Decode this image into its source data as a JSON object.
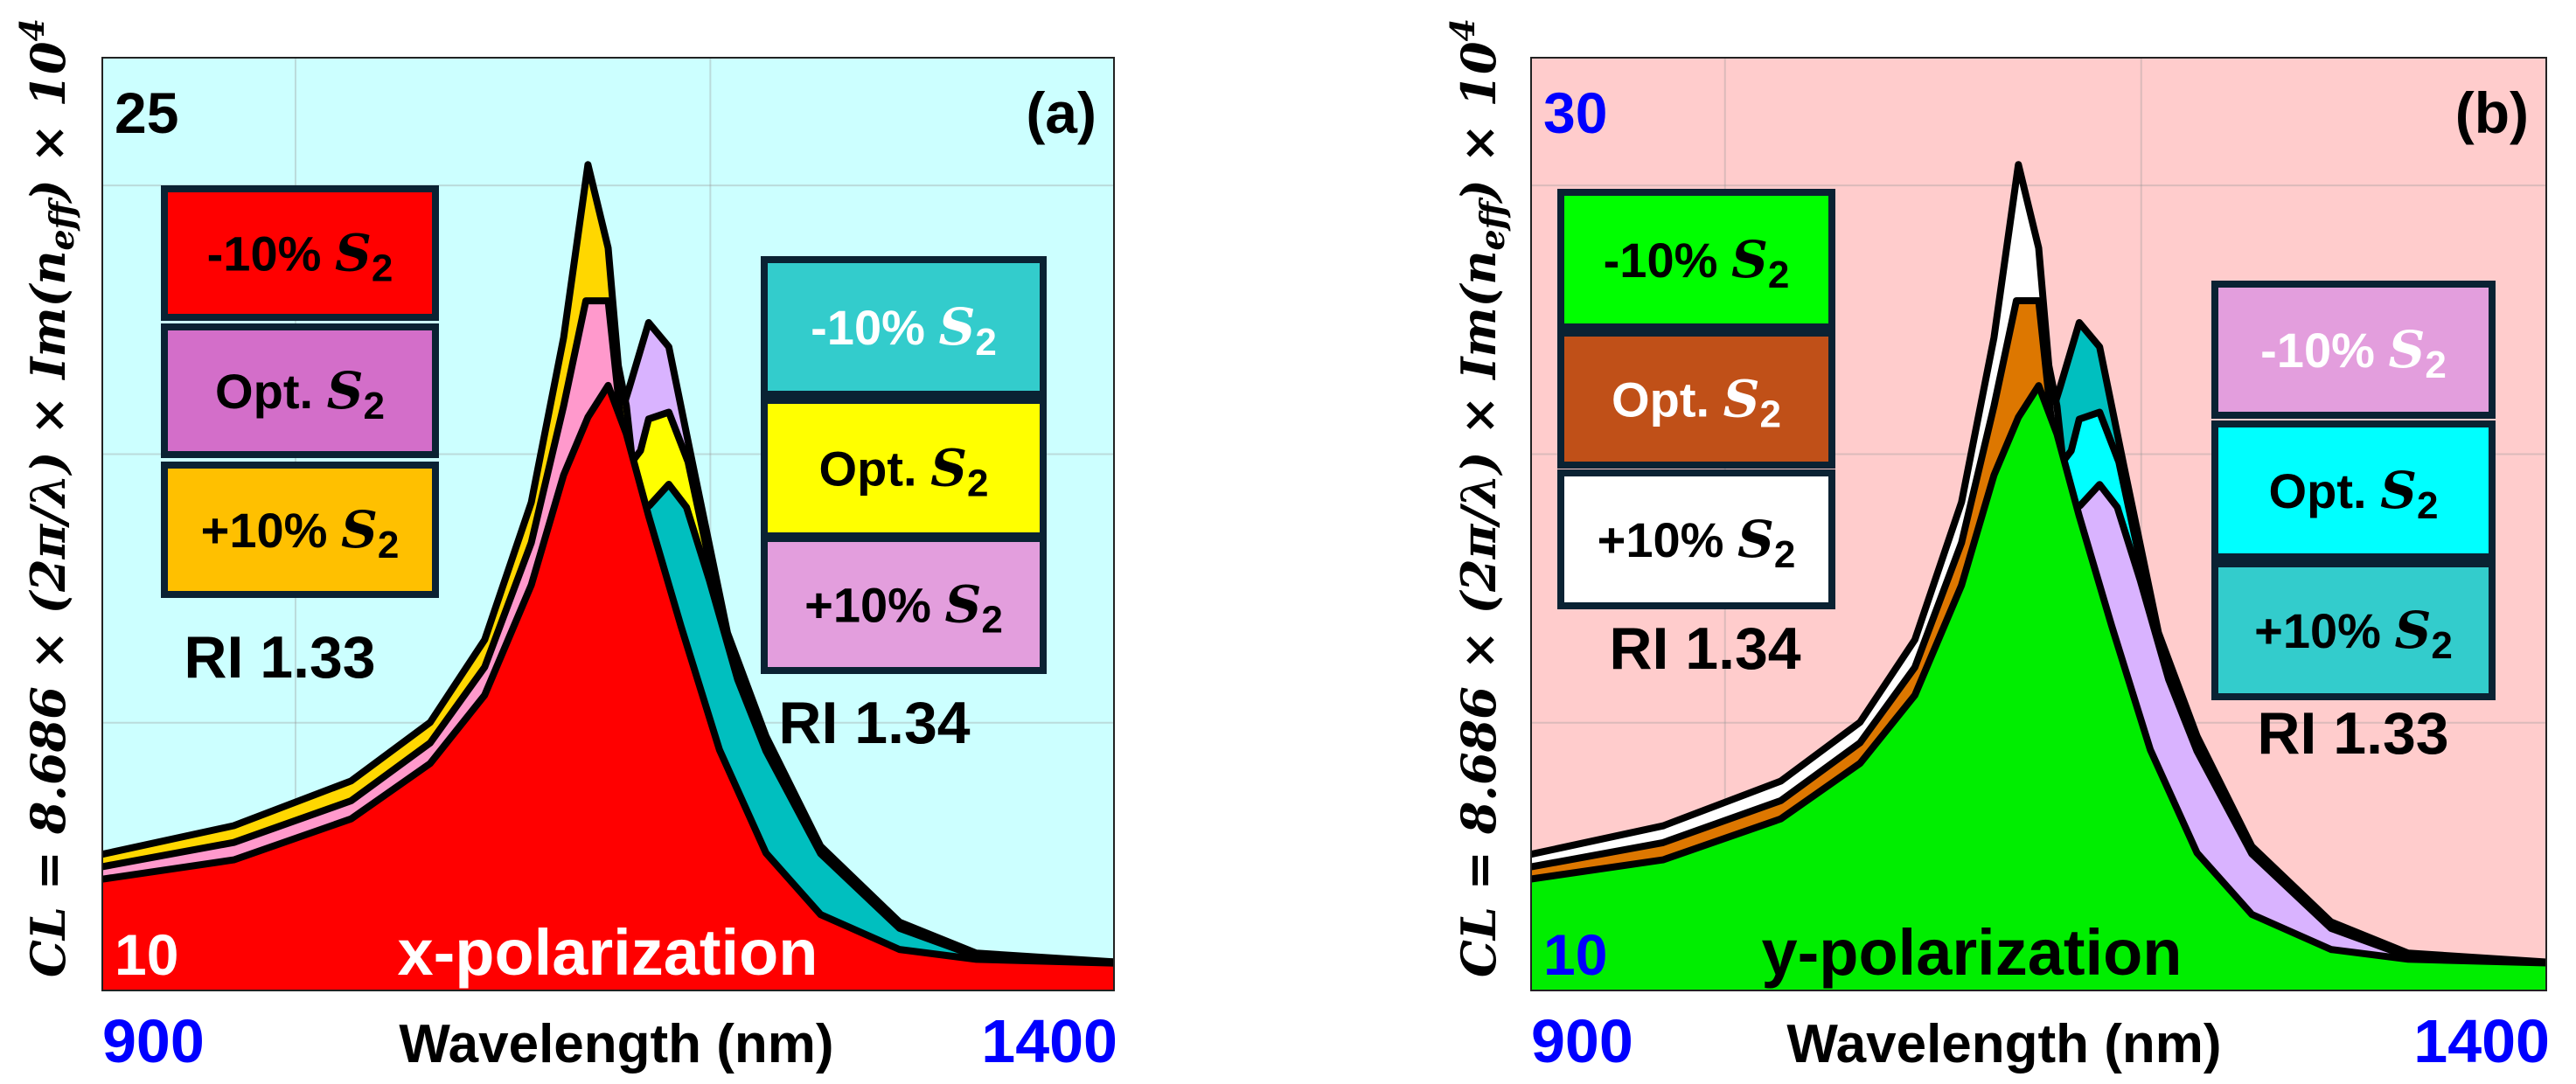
{
  "chart_data": [
    {
      "type": "area",
      "panel_label": "(a)",
      "polarization": "x-polarization",
      "xlabel": "Wavelength (nm)",
      "ylabel": {
        "main": "CL = 8.686 × (2π/λ) × Im(n",
        "sub": "eff",
        "mid": ") × 10",
        "sup": "4"
      },
      "xlim": [
        900,
        1400
      ],
      "ylim": [
        10,
        25
      ],
      "x_ticks": [
        "900",
        "1400"
      ],
      "y_ticks": {
        "top": "25",
        "bottom": "10"
      },
      "grid": true,
      "background": "#ccffff",
      "tick_colors": {
        "x": "#0000ff",
        "y_top": "#000000",
        "y_bottom": "#ffffff"
      },
      "polarization_color": "#ffffff",
      "groups": [
        {
          "ri_label": "RI 1.33",
          "legend": [
            {
              "prefix": "-10% ",
              "sym": "S",
              "sub": "2",
              "color": "#ff0000",
              "text_color": "#000000"
            },
            {
              "prefix": "Opt. ",
              "sym": "S",
              "sub": "2",
              "color": "#d36ec9",
              "text_color": "#000000"
            },
            {
              "prefix": "+10% ",
              "sym": "S",
              "sub": "2",
              "color": "#ffc000",
              "text_color": "#000000"
            }
          ]
        },
        {
          "ri_label": "RI 1.34",
          "legend": [
            {
              "prefix": "-10% ",
              "sym": "S",
              "sub": "2",
              "color": "#33cccc",
              "text_color": "#ffffff"
            },
            {
              "prefix": "Opt. ",
              "sym": "S",
              "sub": "2",
              "color": "#ffff00",
              "text_color": "#000000"
            },
            {
              "prefix": "+10% ",
              "sym": "S",
              "sub": "2",
              "color": "#e39edd",
              "text_color": "#000000"
            }
          ]
        }
      ],
      "series": [
        {
          "name": "RI 1.34 upper",
          "color": "#d9b3ff",
          "x": [
            900,
            1000,
            1050,
            1100,
            1130,
            1150,
            1160.5,
            1170,
            1180,
            1192,
            1209,
            1228,
            1255,
            1294,
            1332,
            1400
          ],
          "y": [
            11.5,
            12.3,
            13.2,
            15.0,
            16.8,
            18.6,
            19.7,
            20.74,
            20.35,
            18.43,
            15.75,
            14.09,
            12.32,
            11.1,
            10.6,
            10.46
          ]
        },
        {
          "name": "RI 1.34 middle",
          "color": "#ffff00",
          "x": [
            900,
            1000,
            1050,
            1100,
            1130,
            1150,
            1166,
            1170,
            1180,
            1189.5,
            1200,
            1212,
            1228,
            1255,
            1294,
            1332,
            1400
          ],
          "y": [
            11.45,
            12.2,
            13.0,
            14.7,
            16.4,
            18.0,
            18.68,
            19.19,
            19.3,
            18.5,
            16.9,
            15.3,
            13.95,
            12.25,
            11.05,
            10.58,
            10.45
          ]
        },
        {
          "name": "RI 1.34 lower",
          "color": "#00bfbf",
          "x": [
            900,
            1000,
            1050,
            1100,
            1130,
            1150,
            1170.5,
            1180,
            1188.7,
            1200,
            1214,
            1228,
            1255,
            1294,
            1332,
            1400
          ],
          "y": [
            11.4,
            12.1,
            12.9,
            14.5,
            16.1,
            17.3,
            17.8,
            18.14,
            17.77,
            16.6,
            15.0,
            13.85,
            12.2,
            11.0,
            10.55,
            10.44
          ]
        },
        {
          "name": "RI 1.33 upper",
          "color": "#ffd700",
          "x": [
            900,
            965,
            1023,
            1062,
            1089,
            1112,
            1128,
            1140,
            1150,
            1155,
            1159,
            1163,
            1170,
            1185,
            1205,
            1228,
            1255,
            1294,
            1332,
            1400
          ],
          "y": [
            12.19,
            12.65,
            13.37,
            14.31,
            15.64,
            17.85,
            20.5,
            23.28,
            21.94,
            20.05,
            19.4,
            18.2,
            17.5,
            15.8,
            13.8,
            12.15,
            11.15,
            10.6,
            10.48,
            10.42
          ]
        },
        {
          "name": "RI 1.33 middle",
          "color": "#ff99cc",
          "x": [
            900,
            965,
            1023,
            1062,
            1089,
            1112,
            1128,
            1139,
            1150,
            1156,
            1160,
            1170,
            1185,
            1205,
            1228,
            1255,
            1294,
            1332,
            1400
          ],
          "y": [
            11.99,
            12.38,
            13.05,
            13.98,
            15.2,
            17.2,
            19.4,
            21.09,
            21.09,
            19.25,
            18.6,
            17.5,
            15.8,
            13.8,
            12.15,
            11.15,
            10.6,
            10.48,
            10.42
          ]
        },
        {
          "name": "RI 1.33 lower",
          "color": "#ff0000",
          "x": [
            900,
            965,
            1023,
            1062,
            1089,
            1112,
            1128,
            1140,
            1150,
            1159,
            1170,
            1186,
            1205,
            1228,
            1255,
            1294,
            1332,
            1400
          ],
          "y": [
            11.79,
            12.1,
            12.76,
            13.65,
            14.75,
            16.52,
            18.29,
            19.22,
            19.73,
            18.95,
            17.63,
            15.86,
            13.87,
            12.21,
            11.22,
            10.66,
            10.5,
            10.44
          ]
        }
      ]
    },
    {
      "type": "area",
      "panel_label": "(b)",
      "polarization": "y-polarization",
      "xlabel": "Wavelength (nm)",
      "ylabel": {
        "main": "CL = 8.686 × (2π/λ) × Im(n",
        "sub": "eff",
        "mid": ") × 10",
        "sup": "4"
      },
      "xlim": [
        900,
        1400
      ],
      "ylim": [
        10,
        30
      ],
      "x_ticks": [
        "900",
        "1400"
      ],
      "y_ticks": {
        "top": "30",
        "bottom": "10"
      },
      "grid": true,
      "background": "#ffcccc",
      "tick_colors": {
        "x": "#0000ff",
        "y_top": "#0000ff",
        "y_bottom": "#0000ff"
      },
      "polarization_color": "#000000",
      "groups": [
        {
          "ri_label": "RI 1.34",
          "legend": [
            {
              "prefix": "-10% ",
              "sym": "S",
              "sub": "2",
              "color": "#00ff00",
              "text_color": "#000000"
            },
            {
              "prefix": "Opt. ",
              "sym": "S",
              "sub": "2",
              "color": "#c05018",
              "text_color": "#ffffff"
            },
            {
              "prefix": "+10% ",
              "sym": "S",
              "sub": "2",
              "color": "#ffffff",
              "text_color": "#000000"
            }
          ]
        },
        {
          "ri_label": "RI 1.33",
          "legend": [
            {
              "prefix": "-10% ",
              "sym": "S",
              "sub": "2",
              "color": "#e39edd",
              "text_color": "#ffffff"
            },
            {
              "prefix": "Opt. ",
              "sym": "S",
              "sub": "2",
              "color": "#00ffff",
              "text_color": "#000000"
            },
            {
              "prefix": "+10% ",
              "sym": "S",
              "sub": "2",
              "color": "#33cccc",
              "text_color": "#000000"
            }
          ]
        }
      ],
      "series": [
        {
          "name": "RI 1.33 upper",
          "color": "#00bfbf",
          "x": [
            900,
            1000,
            1050,
            1100,
            1130,
            1150,
            1160.5,
            1170,
            1180,
            1192,
            1209,
            1228,
            1255,
            1294,
            1332,
            1400
          ],
          "y": [
            12.0,
            13.07,
            14.27,
            16.67,
            19.07,
            21.47,
            22.93,
            24.32,
            23.8,
            21.24,
            17.67,
            15.45,
            13.09,
            11.47,
            10.8,
            10.61
          ]
        },
        {
          "name": "RI 1.33 middle",
          "color": "#00ffff",
          "x": [
            900,
            1000,
            1050,
            1100,
            1130,
            1150,
            1166,
            1170,
            1180,
            1189.5,
            1200,
            1212,
            1228,
            1255,
            1294,
            1332,
            1400
          ],
          "y": [
            11.93,
            12.93,
            14.0,
            16.27,
            18.53,
            20.67,
            21.57,
            22.25,
            22.4,
            21.33,
            19.2,
            17.07,
            15.27,
            13.0,
            11.4,
            10.77,
            10.6
          ]
        },
        {
          "name": "RI 1.33 lower",
          "color": "#d9b3ff",
          "x": [
            900,
            1000,
            1050,
            1100,
            1130,
            1150,
            1170.5,
            1180,
            1188.7,
            1200,
            1214,
            1228,
            1255,
            1294,
            1332,
            1400
          ],
          "y": [
            11.87,
            12.8,
            13.87,
            16.0,
            18.13,
            19.73,
            20.4,
            20.85,
            20.36,
            18.8,
            16.67,
            15.13,
            12.93,
            11.33,
            10.73,
            10.59
          ]
        },
        {
          "name": "RI 1.34 upper",
          "color": "#ffffff",
          "x": [
            900,
            965,
            1023,
            1062,
            1089,
            1112,
            1128,
            1140,
            1150,
            1155,
            1159,
            1163,
            1170,
            1185,
            1205,
            1228,
            1255,
            1294,
            1332,
            1400
          ],
          "y": [
            12.92,
            13.53,
            14.49,
            15.75,
            17.52,
            20.47,
            24.0,
            27.71,
            25.92,
            23.4,
            22.53,
            20.93,
            20.0,
            17.73,
            15.07,
            12.87,
            11.53,
            10.8,
            10.64,
            10.56
          ]
        },
        {
          "name": "RI 1.34 middle",
          "color": "#dd7700",
          "x": [
            900,
            965,
            1023,
            1062,
            1089,
            1112,
            1128,
            1139,
            1150,
            1156,
            1160,
            1170,
            1185,
            1205,
            1228,
            1255,
            1294,
            1332,
            1400
          ],
          "y": [
            12.65,
            13.17,
            14.07,
            15.31,
            16.93,
            19.6,
            22.53,
            24.79,
            24.79,
            22.33,
            21.47,
            20.0,
            17.73,
            15.07,
            12.87,
            11.53,
            10.8,
            10.64,
            10.56
          ]
        },
        {
          "name": "RI 1.34 lower",
          "color": "#00ee00",
          "x": [
            900,
            965,
            1023,
            1062,
            1089,
            1112,
            1128,
            1140,
            1150,
            1159,
            1170,
            1186,
            1205,
            1228,
            1255,
            1294,
            1332,
            1400
          ],
          "y": [
            12.39,
            12.8,
            13.68,
            14.87,
            16.33,
            18.69,
            21.05,
            22.29,
            22.97,
            21.93,
            20.17,
            17.81,
            15.16,
            12.95,
            11.63,
            10.88,
            10.67,
            10.59
          ]
        }
      ]
    }
  ]
}
